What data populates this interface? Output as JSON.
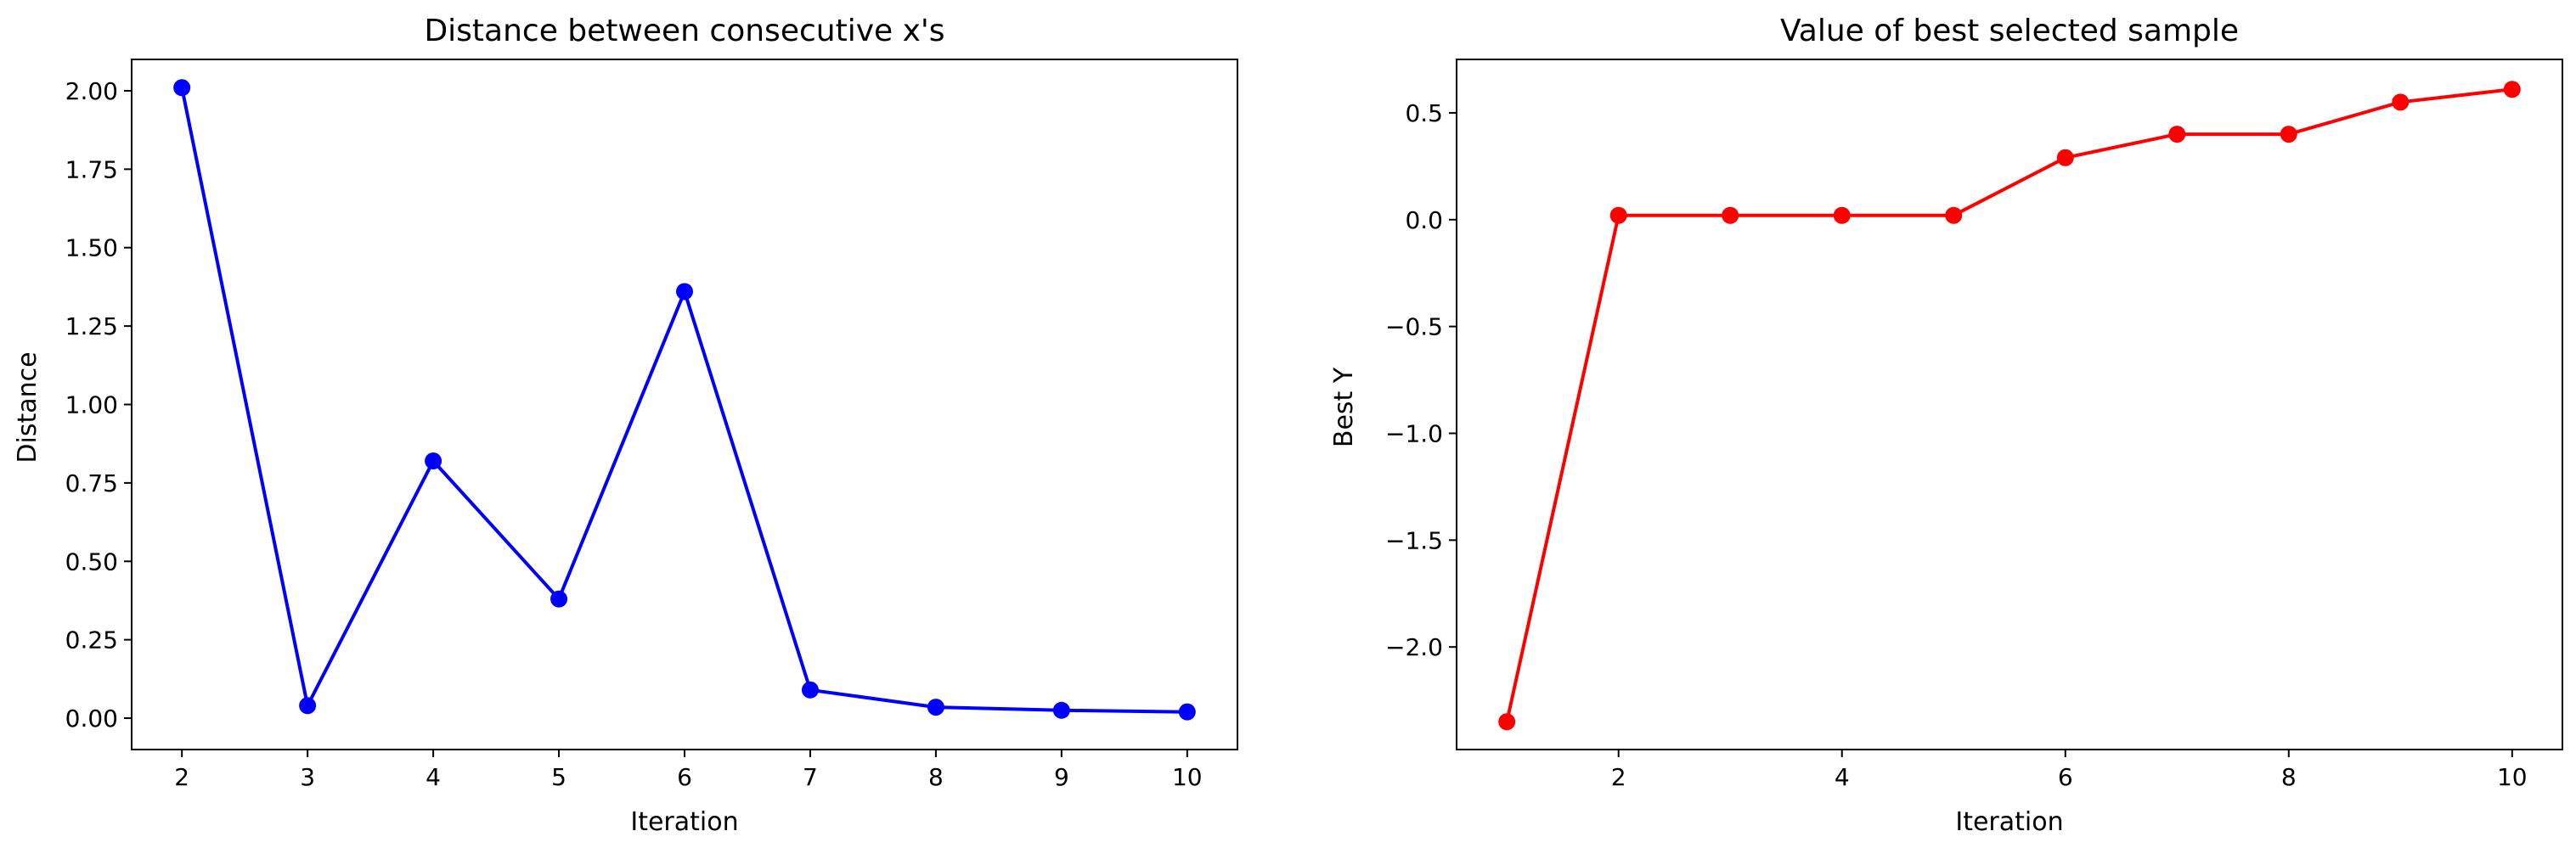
{
  "chart_data": [
    {
      "type": "line",
      "title": "Distance between consecutive x's",
      "xlabel": "Iteration",
      "ylabel": "Distance",
      "xlim": [
        1.6,
        10.4
      ],
      "ylim": [
        -0.1,
        2.1
      ],
      "xticks": [
        2,
        3,
        4,
        5,
        6,
        7,
        8,
        9,
        10
      ],
      "xtick_labels": [
        "2",
        "3",
        "4",
        "5",
        "6",
        "7",
        "8",
        "9",
        "10"
      ],
      "yticks": [
        0,
        0.25,
        0.5,
        0.75,
        1.0,
        1.25,
        1.5,
        1.75,
        2.0
      ],
      "ytick_labels": [
        "0.00",
        "0.25",
        "0.50",
        "0.75",
        "1.00",
        "1.25",
        "1.50",
        "1.75",
        "2.00"
      ],
      "grid": false,
      "color": "#0000ff",
      "series": [
        {
          "x": [
            2,
            3,
            4,
            5,
            6,
            7,
            8,
            9,
            10
          ],
          "values": [
            2.01,
            0.04,
            0.82,
            0.38,
            1.36,
            0.09,
            0.035,
            0.025,
            0.02
          ]
        }
      ]
    },
    {
      "type": "line",
      "title": "Value of best selected sample",
      "xlabel": "Iteration",
      "ylabel": "Best Y",
      "xlim": [
        0.55,
        10.45
      ],
      "ylim": [
        -2.48,
        0.75
      ],
      "xticks": [
        2,
        4,
        6,
        8,
        10
      ],
      "xtick_labels": [
        "2",
        "4",
        "6",
        "8",
        "10"
      ],
      "yticks": [
        -2.0,
        -1.5,
        -1.0,
        -0.5,
        0.0,
        0.5
      ],
      "ytick_labels": [
        "−2.0",
        "−1.5",
        "−1.0",
        "−0.5",
        "0.0",
        "0.5"
      ],
      "grid": false,
      "color": "#ff0000",
      "series": [
        {
          "x": [
            1,
            2,
            3,
            4,
            5,
            6,
            7,
            8,
            9,
            10
          ],
          "values": [
            -2.35,
            0.02,
            0.02,
            0.02,
            0.02,
            0.29,
            0.4,
            0.4,
            0.55,
            0.61
          ]
        }
      ]
    }
  ]
}
